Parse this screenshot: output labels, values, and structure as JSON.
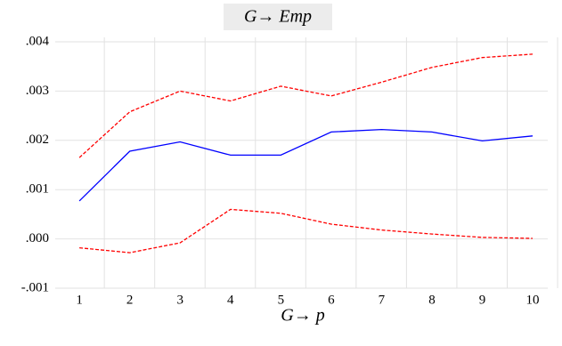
{
  "chart_data": {
    "type": "line",
    "title": "G→ Emp",
    "xlabel": "G→ p",
    "x": [
      1,
      2,
      3,
      4,
      5,
      6,
      7,
      8,
      9,
      10
    ],
    "series": [
      {
        "color": "#ff0000",
        "dash": true,
        "values": [
          0.00165,
          0.00258,
          0.003,
          0.0028,
          0.0031,
          0.0029,
          0.00318,
          0.00348,
          0.00368,
          0.00375
        ]
      },
      {
        "color": "#0000ff",
        "dash": false,
        "values": [
          0.00077,
          0.00178,
          0.00197,
          0.0017,
          0.0017,
          0.00217,
          0.00222,
          0.00217,
          0.00199,
          0.00209
        ]
      },
      {
        "color": "#ff0000",
        "dash": true,
        "values": [
          -0.00018,
          -0.00028,
          -8e-05,
          0.0006,
          0.00052,
          0.0003,
          0.00018,
          0.0001,
          3e-05,
          1e-05
        ]
      }
    ],
    "xlim": [
      0.52,
      10.3
    ],
    "xticks": [
      1,
      2,
      3,
      4,
      5,
      6,
      7,
      8,
      9,
      10
    ],
    "ylim": [
      -0.001,
      0.004
    ],
    "yticks": [
      {
        "value": -0.001,
        "label": "-.001"
      },
      {
        "value": 0,
        "label": ".000"
      },
      {
        "value": 0.001,
        "label": ".001"
      },
      {
        "value": 0.002,
        "label": ".002"
      },
      {
        "value": 0.003,
        "label": ".003"
      },
      {
        "value": 0.004,
        "label": ".004"
      }
    ],
    "grid": true
  }
}
